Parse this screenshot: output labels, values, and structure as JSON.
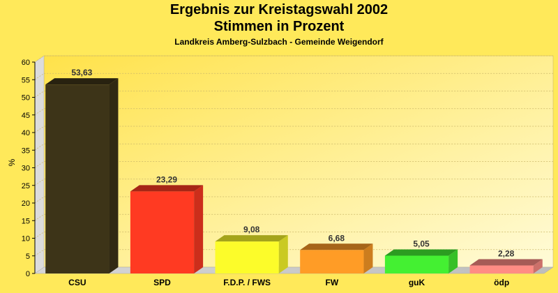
{
  "chart_data": {
    "type": "bar",
    "title": "Ergebnis zur Kreistagswahl 2002",
    "subtitle": "Stimmen in Prozent",
    "caption": "Landkreis Amberg-Sulzbach - Gemeinde Weigendorf",
    "ylabel": "%",
    "xlabel": "",
    "ylim": [
      0,
      60
    ],
    "ytick_step": 5,
    "categories": [
      "CSU",
      "SPD",
      "F.D.P. / FWS",
      "FW",
      "guK",
      "ödp"
    ],
    "values": [
      53.63,
      23.29,
      9.08,
      6.68,
      5.05,
      2.28
    ],
    "value_labels": [
      "53,63",
      "23,29",
      "9,08",
      "6,68",
      "5,05",
      "2,28"
    ],
    "colors": [
      "#3d3418",
      "#ff3a22",
      "#fcfc2a",
      "#ff9c26",
      "#44f032",
      "#ff8c84"
    ],
    "grid": true,
    "legend": "none"
  }
}
